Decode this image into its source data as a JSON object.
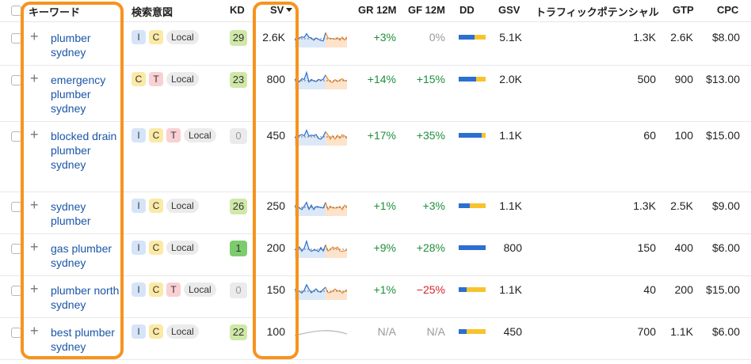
{
  "header": {
    "keyword": "キーワード",
    "intent": "検索意図",
    "kd": "KD",
    "sv": "SV",
    "gr12m": "GR 12M",
    "gf12m": "GF 12M",
    "dd": "DD",
    "gsv": "GSV",
    "tp": "トラフィックポテンシャル",
    "gtp": "GTP",
    "cpc": "CPC"
  },
  "rows": [
    {
      "keyword": "plumber sydney",
      "intents": [
        "I",
        "C",
        "Local"
      ],
      "kd": "29",
      "sv": "2.6K",
      "gr": "+3%",
      "gf": "0%",
      "gsv": "5.1K",
      "tp": "1.3K",
      "gtp": "2.6K",
      "cpc": "$8.00",
      "dd": 0.6
    },
    {
      "keyword": "emergency plumber sydney",
      "intents": [
        "C",
        "T",
        "Local"
      ],
      "kd": "23",
      "sv": "800",
      "gr": "+14%",
      "gf": "+15%",
      "gsv": "2.0K",
      "tp": "500",
      "gtp": "900",
      "cpc": "$13.00",
      "dd": 0.65
    },
    {
      "keyword": "blocked drain plumber sydney",
      "intents": [
        "I",
        "C",
        "T",
        "Local"
      ],
      "kd": "0",
      "sv": "450",
      "gr": "+17%",
      "gf": "+35%",
      "gsv": "1.1K",
      "tp": "60",
      "gtp": "100",
      "cpc": "$15.00",
      "dd": 0.85
    },
    {
      "keyword": "sydney plumber",
      "intents": [
        "I",
        "C",
        "Local"
      ],
      "kd": "26",
      "sv": "250",
      "gr": "+1%",
      "gf": "+3%",
      "gsv": "1.1K",
      "tp": "1.3K",
      "gtp": "2.5K",
      "cpc": "$9.00",
      "dd": 0.4
    },
    {
      "keyword": "gas plumber sydney",
      "intents": [
        "I",
        "C",
        "Local"
      ],
      "kd": "1",
      "sv": "200",
      "gr": "+9%",
      "gf": "+28%",
      "gsv": "800",
      "tp": "150",
      "gtp": "400",
      "cpc": "$6.00",
      "dd": 1.0
    },
    {
      "keyword": "plumber north sydney",
      "intents": [
        "I",
        "C",
        "T",
        "Local"
      ],
      "kd": "0",
      "sv": "150",
      "gr": "+1%",
      "gf": "-25%",
      "gsv": "1.1K",
      "tp": "40",
      "gtp": "200",
      "cpc": "$15.00",
      "dd": 0.3
    },
    {
      "keyword": "best plumber sydney",
      "intents": [
        "I",
        "C",
        "Local"
      ],
      "kd": "22",
      "sv": "100",
      "gr": "N/A",
      "gf": "N/A",
      "gsv": "450",
      "tp": "700",
      "gtp": "1.1K",
      "cpc": "$6.00",
      "dd": 0.3
    }
  ],
  "colors": {
    "highlight": "#f7931e",
    "link": "#1a56a8",
    "positive": "#1f8f3a",
    "negative": "#d3242b",
    "dd_blue": "#2c6fd1",
    "dd_yellow": "#f7c32e"
  }
}
